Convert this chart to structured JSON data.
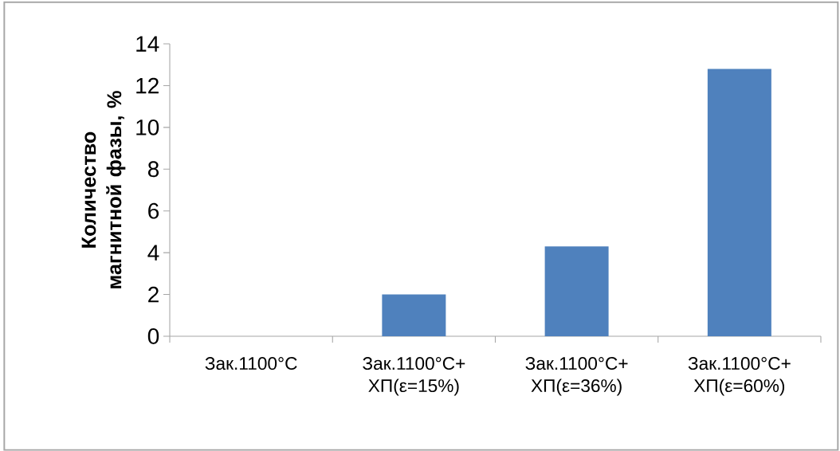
{
  "chart_data": {
    "type": "bar",
    "categories": [
      "Зак.1100°C",
      "Зак.1100°C+ ХП(ε=15%)",
      "Зак.1100°C+ ХП(ε=36%)",
      "Зак.1100°C+ ХП(ε=60%)"
    ],
    "values": [
      0,
      2.0,
      4.3,
      12.8
    ],
    "color": "#4f81bd",
    "ylabel": "Количество магнитной фазы, %",
    "ylim": [
      0,
      14
    ],
    "yticks": [
      0,
      2,
      4,
      6,
      8,
      10,
      12,
      14
    ]
  }
}
